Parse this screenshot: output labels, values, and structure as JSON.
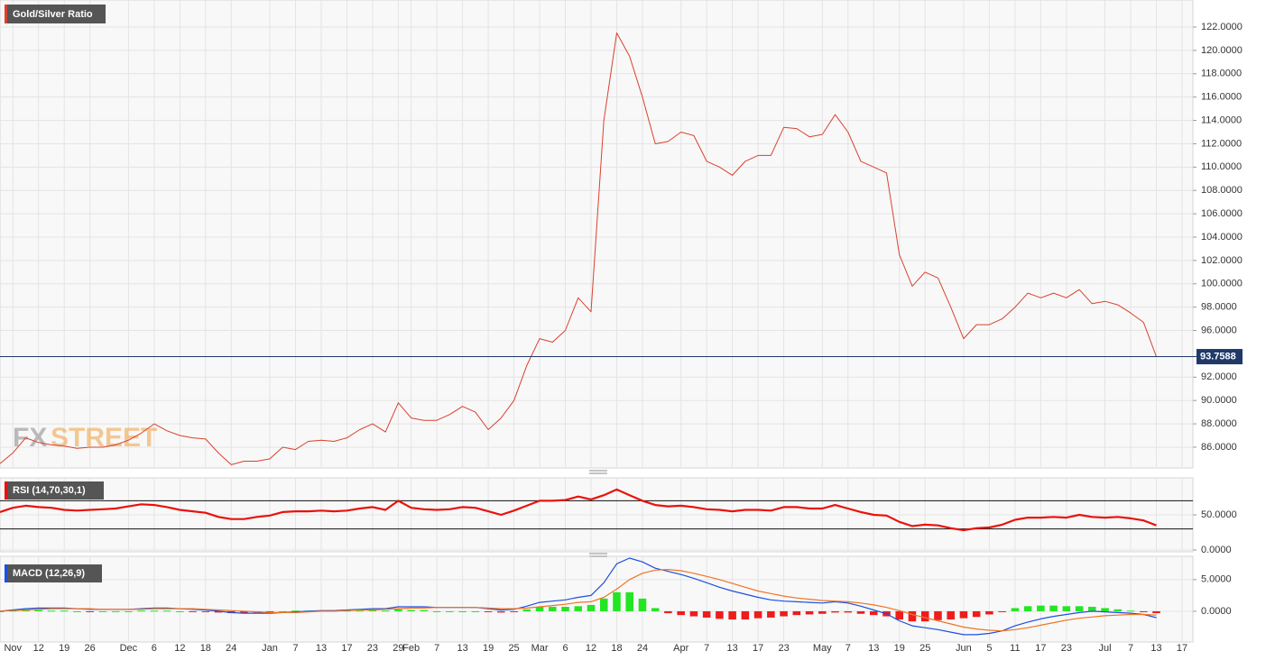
{
  "watermark": [
    "FX",
    "STREET"
  ],
  "chart_data": [
    {
      "type": "line",
      "title": "Gold/Silver Ratio",
      "color": "#d9412e",
      "grid": true,
      "categories": [
        null,
        "Nov",
        null,
        "12",
        null,
        "19",
        null,
        "26",
        null,
        null,
        "Dec",
        null,
        "6",
        null,
        "12",
        null,
        "18",
        null,
        "24",
        null,
        null,
        "Jan",
        null,
        "7",
        null,
        "13",
        null,
        "17",
        null,
        "23",
        null,
        "29",
        "Feb",
        null,
        "7",
        null,
        "13",
        null,
        "19",
        null,
        "25",
        null,
        "Mar",
        null,
        "6",
        null,
        "12",
        null,
        "18",
        null,
        "24",
        null,
        null,
        "Apr",
        null,
        "7",
        null,
        "13",
        null,
        "17",
        null,
        "23",
        null,
        null,
        "May",
        null,
        "7",
        null,
        "13",
        null,
        "19",
        null,
        "25",
        null,
        null,
        "Jun",
        null,
        "5",
        null,
        "11",
        null,
        "17",
        null,
        "23",
        null,
        null,
        "Jul",
        null,
        "7",
        null,
        "13",
        null,
        "17"
      ],
      "values": [
        84.6,
        85.5,
        86.8,
        86.4,
        86.2,
        86.1,
        85.9,
        86.0,
        86.0,
        86.2,
        86.6,
        87.2,
        88.0,
        87.4,
        87.0,
        86.8,
        86.7,
        85.5,
        84.5,
        84.8,
        84.8,
        85.0,
        86.0,
        85.8,
        86.5,
        86.6,
        86.5,
        86.8,
        87.5,
        88.0,
        87.3,
        89.8,
        88.5,
        88.3,
        88.3,
        88.8,
        89.5,
        89.0,
        87.5,
        88.5,
        90.0,
        93.0,
        95.3,
        95.0,
        96.0,
        98.8,
        97.6,
        114,
        121.5,
        119.5,
        116,
        112,
        112.2,
        113,
        112.7,
        110.5,
        110,
        109.3,
        110.5,
        111,
        111,
        113.4,
        113.3,
        112.6,
        112.8,
        114.5,
        113,
        110.5,
        110,
        109.5,
        102.5,
        99.8,
        101,
        100.5,
        98,
        95.3,
        96.5,
        96.5,
        97,
        98,
        99.2,
        98.8,
        99.2,
        98.8,
        99.5,
        98.3,
        98.5,
        98.2,
        97.5,
        96.7,
        93.7588,
        null,
        null
      ],
      "current_value": 93.7588,
      "current_color": "#1f3a68",
      "ylim": [
        84.22,
        124.32
      ],
      "yticks": [
        {
          "value": 86,
          "label": "86.0000"
        },
        {
          "value": 88,
          "label": "88.0000"
        },
        {
          "value": 90,
          "label": "90.0000"
        },
        {
          "value": 92,
          "label": "92.0000"
        },
        {
          "value": 96,
          "label": "96.0000"
        },
        {
          "value": 98,
          "label": "98.0000"
        },
        {
          "value": 100,
          "label": "100.0000"
        },
        {
          "value": 102,
          "label": "102.0000"
        },
        {
          "value": 104,
          "label": "104.0000"
        },
        {
          "value": 106,
          "label": "106.0000"
        },
        {
          "value": 108,
          "label": "108.0000"
        },
        {
          "value": 110,
          "label": "110.0000"
        },
        {
          "value": 112,
          "label": "112.0000"
        },
        {
          "value": 114,
          "label": "114.0000"
        },
        {
          "value": 116,
          "label": "116.0000"
        },
        {
          "value": 118,
          "label": "118.0000"
        },
        {
          "value": 120,
          "label": "120.0000"
        },
        {
          "value": 122,
          "label": "122.0000"
        }
      ]
    },
    {
      "type": "line",
      "title": "RSI (14,70,30,1)",
      "color": "#e8120c",
      "grid": true,
      "values": [
        54,
        60,
        63,
        61,
        60,
        57,
        56,
        57,
        58,
        59,
        62,
        65,
        64,
        61,
        57,
        55,
        53,
        47,
        44,
        44,
        47,
        49,
        54,
        55,
        55,
        56,
        55,
        56,
        59,
        61,
        57,
        70,
        60,
        58,
        57,
        58,
        61,
        60,
        55,
        50,
        56,
        63,
        70,
        70,
        71,
        76,
        72,
        78,
        86,
        78,
        70,
        64,
        62,
        63,
        61,
        58,
        57,
        55,
        57,
        57,
        56,
        61,
        61,
        59,
        59,
        64,
        59,
        54,
        50,
        49,
        40,
        34,
        36,
        35,
        31,
        28,
        31,
        32,
        36,
        43,
        46,
        46,
        47,
        46,
        50,
        47,
        46,
        47,
        45,
        42,
        35,
        null,
        null
      ],
      "levels": [
        70,
        30
      ],
      "ylim": [
        -2.6,
        102.6
      ],
      "yticks": [
        {
          "value": 0,
          "label": "0.0000"
        },
        {
          "value": 50,
          "label": "50.0000"
        }
      ]
    },
    {
      "type": "macd",
      "title": "MACD (12,26,9)",
      "grid": true,
      "series": [
        {
          "type": "bar",
          "color": "#22e622",
          "negative_color": "#ee1c1c",
          "values": [
            0,
            0.1,
            0.2,
            0.2,
            0.1,
            0.1,
            0,
            -0.1,
            0,
            0,
            0,
            0.1,
            0.1,
            0.1,
            0,
            -0.1,
            -0.1,
            -0.2,
            -0.3,
            -0.3,
            -0.2,
            -0.1,
            0,
            0.1,
            0.1,
            0.1,
            0.1,
            0.1,
            0.1,
            0.2,
            0.1,
            0.3,
            0.2,
            0.2,
            0,
            0,
            0,
            0,
            -0.1,
            -0.2,
            -0.1,
            0.3,
            0.7,
            0.7,
            0.7,
            0.8,
            1.0,
            2.0,
            3.0,
            3.0,
            2.0,
            0.5,
            -0.3,
            -0.6,
            -0.8,
            -1.0,
            -1.2,
            -1.3,
            -1.3,
            -1.1,
            -1.0,
            -0.8,
            -0.6,
            -0.5,
            -0.4,
            -0.2,
            -0.2,
            -0.4,
            -0.6,
            -0.8,
            -1.3,
            -1.6,
            -1.6,
            -1.4,
            -1.3,
            -1.1,
            -0.9,
            -0.5,
            -0.1,
            0.5,
            0.8,
            0.9,
            0.9,
            0.8,
            0.8,
            0.7,
            0.5,
            0.3,
            0.1,
            -0.1,
            -0.3,
            null,
            null
          ]
        },
        {
          "type": "line",
          "color": "#1d4fe0",
          "values": [
            0,
            0.2,
            0.4,
            0.5,
            0.5,
            0.5,
            0.4,
            0.3,
            0.3,
            0.3,
            0.3,
            0.4,
            0.5,
            0.5,
            0.4,
            0.3,
            0.2,
            0,
            -0.2,
            -0.3,
            -0.3,
            -0.3,
            -0.2,
            -0.1,
            0,
            0.1,
            0.1,
            0.2,
            0.3,
            0.4,
            0.4,
            0.7,
            0.7,
            0.7,
            0.6,
            0.6,
            0.6,
            0.6,
            0.4,
            0.2,
            0.3,
            0.8,
            1.4,
            1.6,
            1.8,
            2.2,
            2.5,
            4.5,
            7.5,
            8.4,
            7.8,
            6.8,
            6.3,
            5.8,
            5.2,
            4.5,
            3.8,
            3.2,
            2.7,
            2.2,
            1.8,
            1.6,
            1.5,
            1.4,
            1.3,
            1.5,
            1.3,
            0.8,
            0.2,
            -0.4,
            -1.5,
            -2.3,
            -2.6,
            -2.9,
            -3.3,
            -3.7,
            -3.7,
            -3.5,
            -3.1,
            -2.3,
            -1.7,
            -1.2,
            -0.8,
            -0.5,
            -0.2,
            0,
            -0.1,
            -0.2,
            -0.3,
            -0.5,
            -1.0,
            null,
            null
          ]
        },
        {
          "type": "line",
          "color": "#f07424",
          "values": [
            0,
            0.1,
            0.2,
            0.3,
            0.4,
            0.4,
            0.4,
            0.4,
            0.3,
            0.3,
            0.3,
            0.3,
            0.4,
            0.4,
            0.4,
            0.4,
            0.3,
            0.2,
            0.1,
            0,
            -0.1,
            -0.2,
            -0.2,
            -0.2,
            -0.1,
            0,
            0,
            0.1,
            0.2,
            0.2,
            0.3,
            0.4,
            0.5,
            0.5,
            0.6,
            0.6,
            0.6,
            0.6,
            0.5,
            0.4,
            0.4,
            0.5,
            0.7,
            0.9,
            1.1,
            1.4,
            1.5,
            2.2,
            3.5,
            5,
            6,
            6.5,
            6.6,
            6.4,
            6.0,
            5.5,
            5.0,
            4.4,
            3.8,
            3.2,
            2.8,
            2.4,
            2.1,
            1.9,
            1.7,
            1.6,
            1.5,
            1.3,
            1.0,
            0.6,
            0.1,
            -0.5,
            -1.0,
            -1.5,
            -2.0,
            -2.5,
            -2.8,
            -3.0,
            -3.1,
            -2.9,
            -2.6,
            -2.2,
            -1.8,
            -1.4,
            -1.1,
            -0.9,
            -0.7,
            -0.6,
            -0.5,
            -0.5,
            -0.6,
            null,
            null
          ]
        }
      ],
      "ylim": [
        -4.85,
        8.68
      ],
      "yticks": [
        {
          "value": 0,
          "label": "0.0000"
        },
        {
          "value": 5,
          "label": "5.0000"
        }
      ]
    }
  ]
}
